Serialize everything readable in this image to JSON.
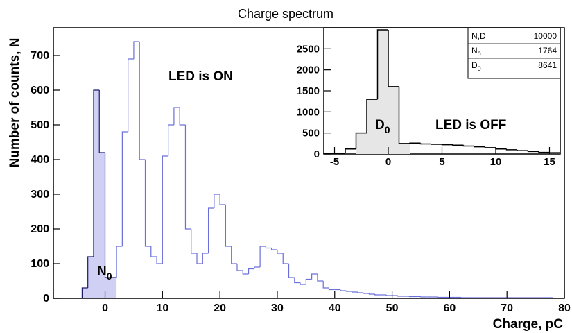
{
  "chart_data": [
    {
      "type": "histogram",
      "title": "Charge spectrum",
      "xlabel": "Charge, pC",
      "ylabel": "Number of counts, N",
      "xlim": [
        -9,
        80
      ],
      "ylim": [
        0,
        780
      ],
      "xticks": [
        0,
        10,
        20,
        30,
        40,
        50,
        60,
        70,
        80
      ],
      "yticks": [
        0,
        100,
        200,
        300,
        400,
        500,
        600,
        700
      ],
      "bin_width": 1,
      "x_start": -4,
      "values": [
        30,
        120,
        600,
        420,
        60,
        60,
        150,
        480,
        690,
        740,
        400,
        150,
        120,
        100,
        410,
        500,
        550,
        500,
        200,
        130,
        100,
        130,
        260,
        300,
        270,
        150,
        100,
        80,
        70,
        85,
        90,
        150,
        145,
        140,
        130,
        100,
        60,
        45,
        40,
        55,
        70,
        50,
        30,
        25,
        25,
        22,
        20,
        18,
        16,
        14,
        12,
        10,
        10,
        8,
        8,
        6,
        6,
        5,
        5,
        4,
        4,
        4,
        3,
        3,
        3,
        3,
        2,
        2,
        2,
        2,
        2,
        2,
        2,
        2,
        2,
        2,
        2,
        2,
        2,
        2,
        2,
        2
      ],
      "shaded_range": [
        -4,
        2
      ],
      "annotation": "LED is ON",
      "shaded_label": "N",
      "shaded_label_sub": "0"
    },
    {
      "type": "histogram",
      "xlim": [
        -6,
        16
      ],
      "ylim": [
        0,
        3000
      ],
      "xticks": [
        -5,
        0,
        5,
        10,
        15
      ],
      "yticks": [
        0,
        500,
        1000,
        1500,
        2000,
        2500
      ],
      "bin_width": 1,
      "x_start": -6,
      "values": [
        5,
        20,
        120,
        500,
        1300,
        2950,
        1600,
        250,
        260,
        240,
        230,
        220,
        210,
        190,
        170,
        150,
        120,
        100,
        80,
        60,
        40,
        30
      ],
      "shaded_range": [
        -3,
        2
      ],
      "annotation": "LED is OFF",
      "shaded_label": "D",
      "shaded_label_sub": "0",
      "stats": [
        {
          "name": "N,D",
          "sub": "",
          "value": "10000"
        },
        {
          "name": "N",
          "sub": "0",
          "value": "1764"
        },
        {
          "name": "D",
          "sub": "0",
          "value": "8641"
        }
      ]
    }
  ]
}
